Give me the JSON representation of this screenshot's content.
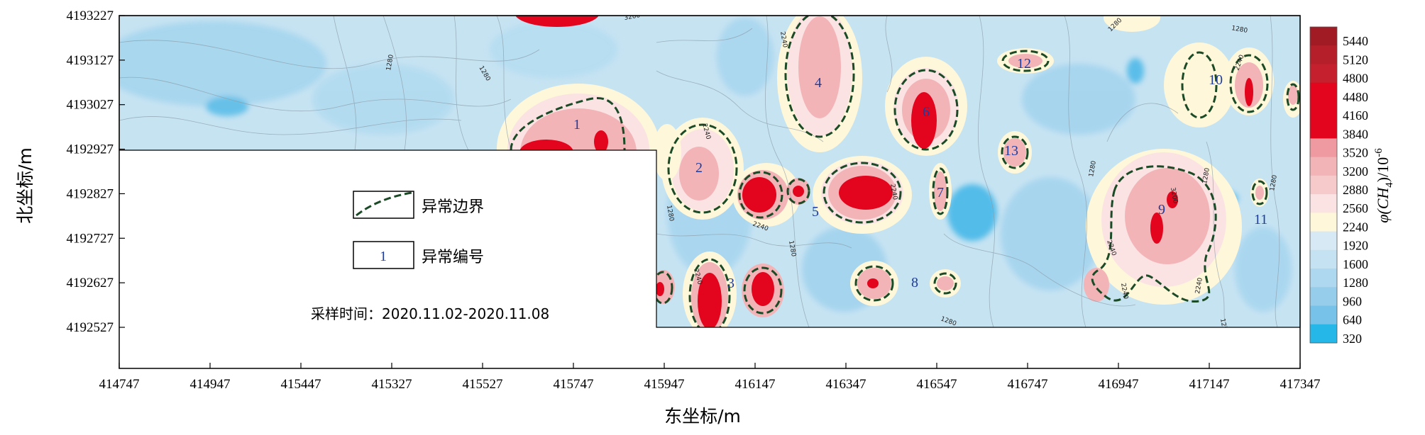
{
  "chart_data": {
    "type": "heatmap",
    "title": "",
    "xlabel": "东坐标/m",
    "ylabel": "北坐标/m",
    "x_ticks": [
      "414747",
      "414947",
      "415447",
      "415327",
      "415527",
      "415747",
      "415947",
      "416147",
      "416347",
      "416547",
      "416747",
      "416947",
      "417147",
      "417347"
    ],
    "y_ticks": [
      "4193227",
      "4193127",
      "4193027",
      "4192927",
      "4192827",
      "4192727",
      "4192627",
      "4192527"
    ],
    "colorbar": {
      "title": "φ(CH4)/10-6",
      "title_main": "φ(CH",
      "title_sub": "4",
      "title_unit": ")/10",
      "title_sup": "-6",
      "levels": [
        "5440",
        "5120",
        "4800",
        "4480",
        "4160",
        "3840",
        "3520",
        "3200",
        "2880",
        "2560",
        "2240",
        "1920",
        "1600",
        "1280",
        "960",
        "640",
        "320"
      ],
      "colors": [
        "#a11b24",
        "#b51f2a",
        "#c4202d",
        "#e2051d",
        "#e2051d",
        "#e2051d",
        "#ee9aa0",
        "#f3b4b8",
        "#f6c9cb",
        "#fbe3e3",
        "#fef7d9",
        "#d7e9f5",
        "#c4e2f2",
        "#aed8ef",
        "#96cdeb",
        "#76c2e8",
        "#24b7e8"
      ]
    },
    "contour_labels": [
      "3200",
      "2240",
      "1280",
      "1280",
      "2240",
      "2240",
      "1280",
      "2240",
      "1280",
      "1280",
      "2240",
      "1280",
      "2240",
      "2240",
      "3200",
      "2240",
      "1280",
      "2240",
      "1280",
      "1280",
      "1280",
      "1280"
    ],
    "anomalies": [
      "1",
      "2",
      "3",
      "4",
      "5",
      "6",
      "7",
      "8",
      "9",
      "10",
      "11",
      "12",
      "13"
    ],
    "legend": {
      "boundary": "异常边界",
      "number": "异常编号",
      "number_sample": "1",
      "sampling": "采样时间：2020.11.02-2020.11.08"
    },
    "grid": false
  }
}
